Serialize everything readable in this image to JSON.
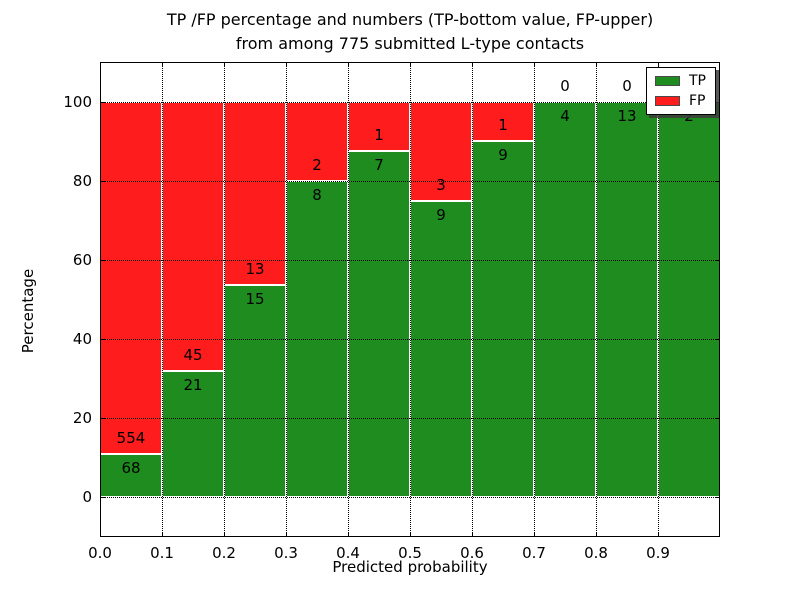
{
  "chart_data": {
    "type": "bar",
    "stacked": true,
    "orientation": "vertical",
    "normalized_to_percent": true,
    "title": "TP /FP percentage and numbers (TP-bottom value, FP-upper)\nfrom among 775 submitted L-type contacts",
    "title_lines": [
      "TP /FP percentage and numbers (TP-bottom value, FP-upper)",
      "from among 775 submitted L-type contacts"
    ],
    "xlabel": "Predicted probability",
    "ylabel": "Percentage",
    "xlim": [
      0.0,
      1.0
    ],
    "ylim": [
      -10,
      110
    ],
    "bin_width": 0.1,
    "bin_starts": [
      0.0,
      0.1,
      0.2,
      0.3,
      0.4,
      0.5,
      0.6,
      0.7,
      0.8,
      0.9
    ],
    "x_tick_labels": [
      "0.0",
      "0.1",
      "0.2",
      "0.3",
      "0.4",
      "0.5",
      "0.6",
      "0.7",
      "0.8",
      "0.9"
    ],
    "y_tick_values": [
      0,
      20,
      40,
      60,
      80,
      100
    ],
    "y_tick_labels": [
      "0",
      "20",
      "40",
      "60",
      "80",
      "100"
    ],
    "series": [
      {
        "name": "TP",
        "color": "#1e8c1e",
        "counts": [
          68,
          21,
          15,
          8,
          7,
          9,
          9,
          4,
          13,
          2
        ],
        "percent": [
          10.93,
          31.82,
          53.57,
          80.0,
          87.5,
          75.0,
          90.0,
          100.0,
          100.0,
          100.0
        ]
      },
      {
        "name": "FP",
        "color": "#ff1c1c",
        "counts": [
          554,
          45,
          13,
          2,
          1,
          3,
          1,
          0,
          0,
          0
        ],
        "percent": [
          89.07,
          68.18,
          46.43,
          20.0,
          12.5,
          25.0,
          10.0,
          0.0,
          0.0,
          0.0
        ]
      }
    ],
    "grid": {
      "enabled": true,
      "style": "dotted",
      "color": "#000000"
    },
    "bar_edge_color": "#ffffff",
    "legend": {
      "position": "upper right",
      "entries": [
        {
          "label": "TP",
          "color": "#1e8c1e"
        },
        {
          "label": "FP",
          "color": "#ff1c1c"
        }
      ]
    }
  }
}
